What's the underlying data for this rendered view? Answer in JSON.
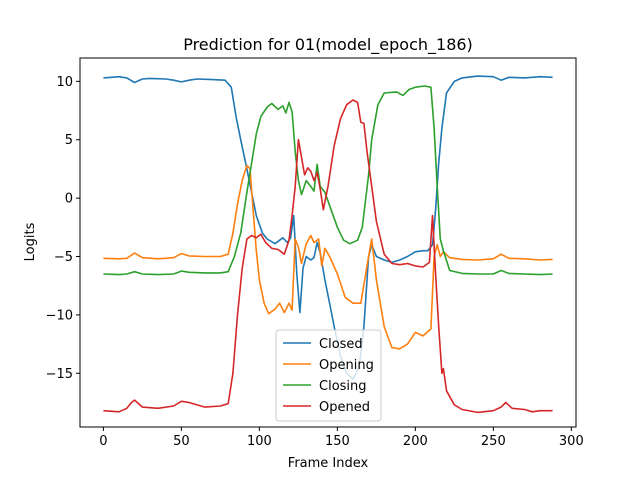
{
  "chart_data": {
    "type": "line",
    "title": "Prediction for 01(model_epoch_186)",
    "xlabel": "Frame Index",
    "ylabel": "Logits",
    "xlim": [
      -15,
      303
    ],
    "ylim": [
      -19.6,
      12.0
    ],
    "xticks": [
      0,
      50,
      100,
      150,
      200,
      250,
      300
    ],
    "yticks": [
      -15,
      -10,
      -5,
      0,
      5,
      10
    ],
    "grid": false,
    "legend_position": "lower-center",
    "series": [
      {
        "name": "Closed",
        "color": "#1f77b4",
        "points": [
          [
            0,
            10.3
          ],
          [
            5,
            10.35
          ],
          [
            10,
            10.4
          ],
          [
            15,
            10.3
          ],
          [
            20,
            9.9
          ],
          [
            25,
            10.2
          ],
          [
            30,
            10.25
          ],
          [
            40,
            10.2
          ],
          [
            45,
            10.1
          ],
          [
            50,
            9.95
          ],
          [
            55,
            10.1
          ],
          [
            60,
            10.2
          ],
          [
            70,
            10.15
          ],
          [
            78,
            10.1
          ],
          [
            82,
            9.5
          ],
          [
            85,
            7.0
          ],
          [
            88,
            5.0
          ],
          [
            92,
            2.5
          ],
          [
            95,
            0.5
          ],
          [
            98,
            -1.5
          ],
          [
            102,
            -3.0
          ],
          [
            105,
            -3.5
          ],
          [
            110,
            -3.9
          ],
          [
            115,
            -3.4
          ],
          [
            118,
            -3.8
          ],
          [
            120,
            -3.4
          ],
          [
            122,
            -1.5
          ],
          [
            124,
            -6.5
          ],
          [
            126,
            -9.8
          ],
          [
            128,
            -6.0
          ],
          [
            130,
            -5.0
          ],
          [
            133,
            -5.3
          ],
          [
            135,
            -5.1
          ],
          [
            137,
            -3.8
          ],
          [
            139,
            -4.7
          ],
          [
            142,
            -7.0
          ],
          [
            145,
            -9.0
          ],
          [
            148,
            -11.0
          ],
          [
            152,
            -13.5
          ],
          [
            156,
            -15.0
          ],
          [
            160,
            -15.5
          ],
          [
            164,
            -14.5
          ],
          [
            167,
            -11.0
          ],
          [
            170,
            -5.0
          ],
          [
            172,
            -4.0
          ],
          [
            175,
            -5.0
          ],
          [
            180,
            -5.3
          ],
          [
            185,
            -5.5
          ],
          [
            190,
            -5.3
          ],
          [
            195,
            -5.0
          ],
          [
            200,
            -4.6
          ],
          [
            205,
            -4.5
          ],
          [
            208,
            -4.5
          ],
          [
            211,
            -4.0
          ],
          [
            213,
            -1.0
          ],
          [
            215,
            3.0
          ],
          [
            217,
            6.0
          ],
          [
            220,
            9.0
          ],
          [
            225,
            10.0
          ],
          [
            230,
            10.3
          ],
          [
            240,
            10.45
          ],
          [
            250,
            10.4
          ],
          [
            255,
            10.1
          ],
          [
            260,
            10.35
          ],
          [
            270,
            10.3
          ],
          [
            280,
            10.4
          ],
          [
            288,
            10.35
          ]
        ]
      },
      {
        "name": "Opening",
        "color": "#ff7f0e",
        "points": [
          [
            0,
            -5.15
          ],
          [
            10,
            -5.2
          ],
          [
            15,
            -5.15
          ],
          [
            20,
            -4.7
          ],
          [
            25,
            -5.1
          ],
          [
            35,
            -5.2
          ],
          [
            45,
            -5.1
          ],
          [
            50,
            -4.75
          ],
          [
            55,
            -4.95
          ],
          [
            65,
            -5.0
          ],
          [
            75,
            -5.0
          ],
          [
            80,
            -4.8
          ],
          [
            83,
            -3.0
          ],
          [
            86,
            -0.5
          ],
          [
            89,
            1.5
          ],
          [
            92,
            2.8
          ],
          [
            94,
            2.5
          ],
          [
            96,
            -1.0
          ],
          [
            98,
            -4.5
          ],
          [
            100,
            -7.0
          ],
          [
            103,
            -9.0
          ],
          [
            106,
            -9.9
          ],
          [
            110,
            -9.5
          ],
          [
            113,
            -9.0
          ],
          [
            116,
            -9.8
          ],
          [
            119,
            -9.0
          ],
          [
            121,
            -9.6
          ],
          [
            123,
            -3.5
          ],
          [
            125,
            -4.2
          ],
          [
            127,
            -5.6
          ],
          [
            130,
            -3.9
          ],
          [
            133,
            -3.2
          ],
          [
            135,
            -3.8
          ],
          [
            138,
            -3.5
          ],
          [
            140,
            -5.8
          ],
          [
            142,
            -4.3
          ],
          [
            145,
            -5.0
          ],
          [
            150,
            -6.5
          ],
          [
            155,
            -8.5
          ],
          [
            160,
            -9.0
          ],
          [
            165,
            -9.0
          ],
          [
            170,
            -5.0
          ],
          [
            172,
            -3.5
          ],
          [
            175,
            -7.0
          ],
          [
            180,
            -11.0
          ],
          [
            185,
            -12.8
          ],
          [
            190,
            -12.9
          ],
          [
            195,
            -12.5
          ],
          [
            200,
            -11.5
          ],
          [
            205,
            -11.8
          ],
          [
            210,
            -11.2
          ],
          [
            212,
            -5.0
          ],
          [
            214,
            -4.0
          ],
          [
            216,
            -5.0
          ],
          [
            218,
            -4.6
          ],
          [
            222,
            -5.1
          ],
          [
            230,
            -5.25
          ],
          [
            240,
            -5.3
          ],
          [
            250,
            -5.2
          ],
          [
            255,
            -4.8
          ],
          [
            260,
            -5.15
          ],
          [
            270,
            -5.2
          ],
          [
            280,
            -5.3
          ],
          [
            288,
            -5.25
          ]
        ]
      },
      {
        "name": "Closing",
        "color": "#2ca02c",
        "points": [
          [
            0,
            -6.5
          ],
          [
            10,
            -6.55
          ],
          [
            15,
            -6.5
          ],
          [
            20,
            -6.3
          ],
          [
            25,
            -6.5
          ],
          [
            35,
            -6.55
          ],
          [
            45,
            -6.5
          ],
          [
            50,
            -6.25
          ],
          [
            55,
            -6.35
          ],
          [
            65,
            -6.4
          ],
          [
            75,
            -6.4
          ],
          [
            80,
            -6.3
          ],
          [
            84,
            -5.0
          ],
          [
            88,
            -3.0
          ],
          [
            92,
            0.5
          ],
          [
            95,
            3.0
          ],
          [
            98,
            5.5
          ],
          [
            101,
            7.0
          ],
          [
            105,
            7.8
          ],
          [
            108,
            8.1
          ],
          [
            112,
            7.6
          ],
          [
            115,
            7.9
          ],
          [
            117,
            7.3
          ],
          [
            119,
            8.2
          ],
          [
            121,
            7.4
          ],
          [
            123,
            4.0
          ],
          [
            125,
            1.5
          ],
          [
            127,
            0.3
          ],
          [
            130,
            1.5
          ],
          [
            133,
            1.0
          ],
          [
            135,
            0.6
          ],
          [
            137,
            2.9
          ],
          [
            139,
            1.0
          ],
          [
            142,
            0.5
          ],
          [
            146,
            -1.0
          ],
          [
            150,
            -2.5
          ],
          [
            154,
            -3.6
          ],
          [
            158,
            -3.9
          ],
          [
            163,
            -3.6
          ],
          [
            166,
            -2.5
          ],
          [
            170,
            2.0
          ],
          [
            172,
            5.0
          ],
          [
            176,
            8.0
          ],
          [
            180,
            9.0
          ],
          [
            188,
            9.1
          ],
          [
            192,
            8.8
          ],
          [
            196,
            9.3
          ],
          [
            200,
            9.5
          ],
          [
            206,
            9.6
          ],
          [
            210,
            9.5
          ],
          [
            212,
            6.0
          ],
          [
            214,
            1.0
          ],
          [
            216,
            -3.5
          ],
          [
            218,
            -4.5
          ],
          [
            222,
            -6.2
          ],
          [
            230,
            -6.45
          ],
          [
            240,
            -6.5
          ],
          [
            250,
            -6.5
          ],
          [
            255,
            -6.2
          ],
          [
            260,
            -6.45
          ],
          [
            270,
            -6.5
          ],
          [
            280,
            -6.55
          ],
          [
            288,
            -6.5
          ]
        ]
      },
      {
        "name": "Opened",
        "color": "#d62728",
        "points": [
          [
            0,
            -18.2
          ],
          [
            10,
            -18.3
          ],
          [
            15,
            -18.0
          ],
          [
            18,
            -17.5
          ],
          [
            20,
            -17.3
          ],
          [
            25,
            -17.9
          ],
          [
            35,
            -18.0
          ],
          [
            45,
            -17.8
          ],
          [
            50,
            -17.4
          ],
          [
            55,
            -17.5
          ],
          [
            65,
            -17.9
          ],
          [
            75,
            -17.8
          ],
          [
            80,
            -17.6
          ],
          [
            83,
            -15.0
          ],
          [
            86,
            -10.0
          ],
          [
            89,
            -6.0
          ],
          [
            92,
            -3.5
          ],
          [
            95,
            -3.2
          ],
          [
            98,
            -3.4
          ],
          [
            101,
            -3.1
          ],
          [
            104,
            -3.8
          ],
          [
            108,
            -4.3
          ],
          [
            112,
            -4.4
          ],
          [
            116,
            -4.8
          ],
          [
            119,
            -3.6
          ],
          [
            121,
            -1.5
          ],
          [
            123,
            1.0
          ],
          [
            125,
            5.0
          ],
          [
            127,
            3.5
          ],
          [
            129,
            2.0
          ],
          [
            131,
            2.6
          ],
          [
            133,
            2.3
          ],
          [
            135,
            1.5
          ],
          [
            137,
            2.2
          ],
          [
            139,
            0.8
          ],
          [
            141,
            -1.0
          ],
          [
            144,
            1.0
          ],
          [
            148,
            4.5
          ],
          [
            152,
            6.8
          ],
          [
            156,
            8.0
          ],
          [
            160,
            8.4
          ],
          [
            163,
            8.2
          ],
          [
            165,
            6.5
          ],
          [
            167,
            6.4
          ],
          [
            169,
            4.0
          ],
          [
            172,
            1.0
          ],
          [
            175,
            -2.0
          ],
          [
            180,
            -4.8
          ],
          [
            185,
            -5.6
          ],
          [
            190,
            -5.7
          ],
          [
            195,
            -5.6
          ],
          [
            200,
            -5.8
          ],
          [
            205,
            -5.9
          ],
          [
            209,
            -5.5
          ],
          [
            211,
            -1.5
          ],
          [
            213,
            -6.5
          ],
          [
            215,
            -11.0
          ],
          [
            217,
            -15.0
          ],
          [
            218,
            -14.6
          ],
          [
            220,
            -16.5
          ],
          [
            225,
            -17.7
          ],
          [
            230,
            -18.1
          ],
          [
            240,
            -18.35
          ],
          [
            250,
            -18.2
          ],
          [
            255,
            -17.9
          ],
          [
            258,
            -17.5
          ],
          [
            262,
            -18.0
          ],
          [
            270,
            -18.1
          ],
          [
            275,
            -18.3
          ],
          [
            280,
            -18.2
          ],
          [
            288,
            -18.2
          ]
        ]
      }
    ]
  }
}
